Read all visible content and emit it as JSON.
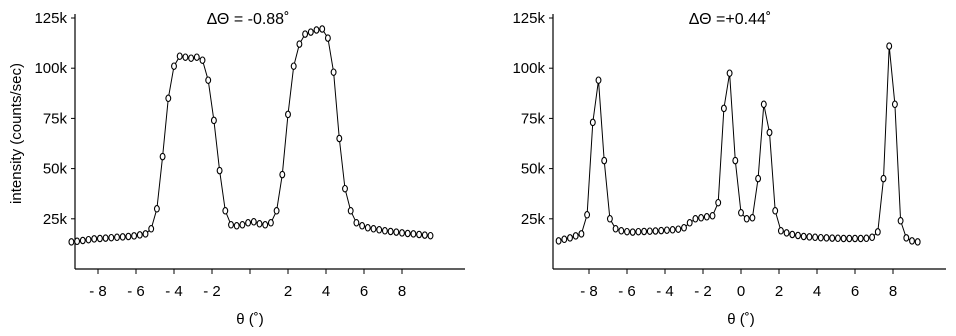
{
  "chart_data": [
    {
      "type": "line",
      "title": "ΔΘ = -0.88˚",
      "xlabel": "θ (˚)",
      "ylabel": "intensity (counts/sec)",
      "xlim": [
        -10,
        10
      ],
      "ylim": [
        0,
        125000
      ],
      "grid": false,
      "x_tick_values": [
        -8,
        -6,
        -4,
        -2,
        0,
        2,
        4,
        6,
        8
      ],
      "x_tick_labels": [
        "- 8",
        "- 6",
        "- 4",
        "- 2",
        "",
        "2",
        "4",
        "6",
        "8"
      ],
      "y_tick_values": [
        25000,
        50000,
        75000,
        100000,
        125000
      ],
      "y_tick_labels": [
        "25k",
        "50k",
        "75k",
        "100k",
        "125k"
      ],
      "x": [
        -9.4,
        -9.1,
        -8.8,
        -8.5,
        -8.2,
        -7.9,
        -7.6,
        -7.3,
        -7.0,
        -6.7,
        -6.4,
        -6.1,
        -5.8,
        -5.5,
        -5.2,
        -4.9,
        -4.6,
        -4.3,
        -4.0,
        -3.7,
        -3.4,
        -3.1,
        -2.8,
        -2.5,
        -2.2,
        -1.9,
        -1.6,
        -1.3,
        -1.0,
        -0.7,
        -0.4,
        -0.1,
        0.2,
        0.5,
        0.8,
        1.1,
        1.4,
        1.7,
        2.0,
        2.3,
        2.6,
        2.9,
        3.2,
        3.5,
        3.8,
        4.1,
        4.4,
        4.7,
        5.0,
        5.3,
        5.6,
        5.9,
        6.2,
        6.5,
        6.8,
        7.1,
        7.4,
        7.7,
        8.0,
        8.3,
        8.6,
        8.9,
        9.2,
        9.5
      ],
      "y": [
        13500,
        13800,
        14200,
        14600,
        15000,
        15200,
        15400,
        15600,
        15800,
        16000,
        16200,
        16500,
        17000,
        17500,
        20000,
        30000,
        56000,
        85000,
        101000,
        106000,
        105500,
        105000,
        105500,
        104000,
        94000,
        74000,
        49000,
        29000,
        22000,
        21500,
        22000,
        23000,
        23500,
        22500,
        22000,
        23000,
        29000,
        47000,
        77000,
        101000,
        112000,
        117000,
        118000,
        119000,
        119500,
        115000,
        98000,
        65000,
        40000,
        29000,
        23000,
        21500,
        20500,
        20000,
        19500,
        19000,
        18700,
        18400,
        18000,
        17700,
        17500,
        17200,
        16900,
        16600
      ]
    },
    {
      "type": "line",
      "title": "ΔΘ =+0.44˚",
      "xlabel": "θ (˚)",
      "ylabel": "",
      "xlim": [
        -10,
        10
      ],
      "ylim": [
        0,
        125000
      ],
      "grid": false,
      "x_tick_values": [
        -8,
        -6,
        -4,
        -2,
        0,
        2,
        4,
        6,
        8
      ],
      "x_tick_labels": [
        "- 8",
        "- 6",
        "- 4",
        "- 2",
        "0",
        "2",
        "4",
        "6",
        "8"
      ],
      "y_tick_values": [
        25000,
        50000,
        75000,
        100000,
        125000
      ],
      "y_tick_labels": [
        "25k",
        "50k",
        "75k",
        "100k",
        "125k"
      ],
      "x": [
        -9.6,
        -9.3,
        -9.0,
        -8.7,
        -8.4,
        -8.1,
        -7.8,
        -7.5,
        -7.2,
        -6.9,
        -6.6,
        -6.3,
        -6.0,
        -5.7,
        -5.4,
        -5.1,
        -4.8,
        -4.5,
        -4.2,
        -3.9,
        -3.6,
        -3.3,
        -3.0,
        -2.7,
        -2.4,
        -2.1,
        -1.8,
        -1.5,
        -1.2,
        -0.9,
        -0.6,
        -0.3,
        0.0,
        0.3,
        0.6,
        0.9,
        1.2,
        1.5,
        1.8,
        2.1,
        2.4,
        2.7,
        3.0,
        3.3,
        3.6,
        3.9,
        4.2,
        4.5,
        4.8,
        5.1,
        5.4,
        5.7,
        6.0,
        6.3,
        6.6,
        6.9,
        7.2,
        7.5,
        7.8,
        8.1,
        8.4,
        8.7,
        9.0,
        9.3
      ],
      "y": [
        14000,
        14800,
        15500,
        16500,
        17500,
        27000,
        73000,
        94000,
        54000,
        25000,
        20000,
        19000,
        18600,
        18400,
        18600,
        18700,
        18800,
        18900,
        19100,
        19300,
        19500,
        19800,
        20500,
        23000,
        25000,
        25500,
        26000,
        26500,
        33000,
        80000,
        97500,
        54000,
        28000,
        25000,
        25500,
        45000,
        82000,
        68000,
        29000,
        19000,
        18000,
        17200,
        16700,
        16200,
        16000,
        15800,
        15600,
        15500,
        15400,
        15300,
        15200,
        15200,
        15200,
        15200,
        15300,
        15800,
        18500,
        45000,
        111000,
        82000,
        24000,
        15500,
        14000,
        13500
      ]
    }
  ]
}
